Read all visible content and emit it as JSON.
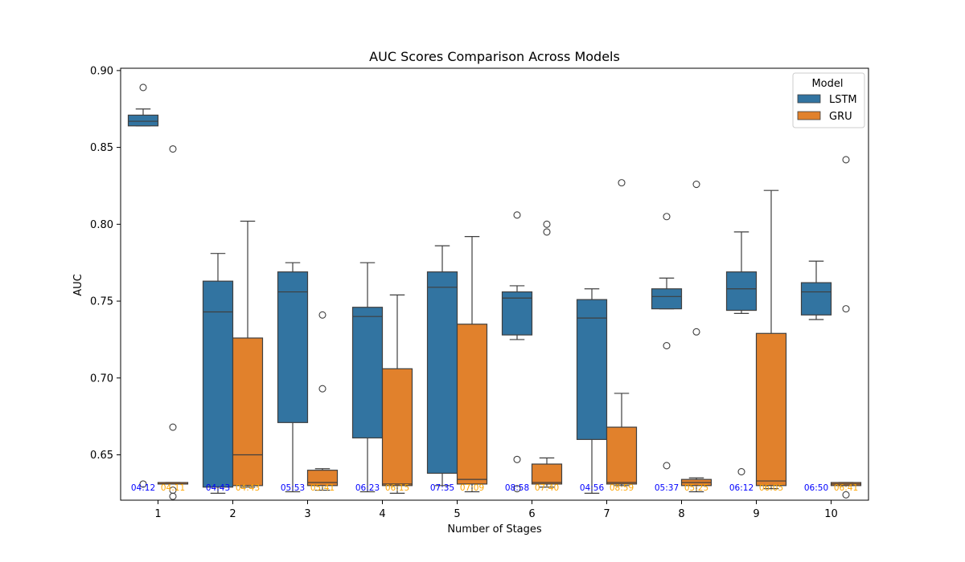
{
  "chart_data": {
    "type": "boxplot",
    "title": "AUC Scores Comparison Across Models",
    "xlabel": "Number of Stages",
    "ylabel": "AUC",
    "ylim": [
      0.6205,
      0.9015
    ],
    "yticks": [
      0.65,
      0.7,
      0.75,
      0.8,
      0.85,
      0.9
    ],
    "ytick_labels": [
      "0.65",
      "0.70",
      "0.75",
      "0.80",
      "0.85",
      "0.90"
    ],
    "categories": [
      "1",
      "2",
      "3",
      "4",
      "5",
      "6",
      "7",
      "8",
      "9",
      "10"
    ],
    "legend": {
      "title": "Model",
      "position": "top-right",
      "entries": [
        "LSTM",
        "GRU"
      ]
    },
    "series": [
      {
        "name": "LSTM",
        "color": "#3274a1",
        "time_color": "#0000ff",
        "boxes": [
          {
            "whisker_low": 0.864,
            "q1": 0.864,
            "median": 0.867,
            "q3": 0.871,
            "whisker_high": 0.875,
            "outliers": [
              0.889,
              0.631
            ]
          },
          {
            "whisker_low": 0.625,
            "q1": 0.629,
            "median": 0.743,
            "q3": 0.763,
            "whisker_high": 0.781,
            "outliers": []
          },
          {
            "whisker_low": 0.626,
            "q1": 0.671,
            "median": 0.756,
            "q3": 0.769,
            "whisker_high": 0.775,
            "outliers": []
          },
          {
            "whisker_low": 0.626,
            "q1": 0.661,
            "median": 0.74,
            "q3": 0.746,
            "whisker_high": 0.775,
            "outliers": []
          },
          {
            "whisker_low": 0.63,
            "q1": 0.638,
            "median": 0.759,
            "q3": 0.769,
            "whisker_high": 0.786,
            "outliers": []
          },
          {
            "whisker_low": 0.725,
            "q1": 0.728,
            "median": 0.752,
            "q3": 0.756,
            "whisker_high": 0.76,
            "outliers": [
              0.806,
              0.647,
              0.628
            ]
          },
          {
            "whisker_low": 0.625,
            "q1": 0.66,
            "median": 0.739,
            "q3": 0.751,
            "whisker_high": 0.758,
            "outliers": []
          },
          {
            "whisker_low": 0.745,
            "q1": 0.745,
            "median": 0.753,
            "q3": 0.758,
            "whisker_high": 0.765,
            "outliers": [
              0.805,
              0.721,
              0.643
            ]
          },
          {
            "whisker_low": 0.742,
            "q1": 0.744,
            "median": 0.758,
            "q3": 0.769,
            "whisker_high": 0.795,
            "outliers": [
              0.639
            ]
          },
          {
            "whisker_low": 0.738,
            "q1": 0.741,
            "median": 0.756,
            "q3": 0.762,
            "whisker_high": 0.776,
            "outliers": []
          }
        ],
        "times": [
          "04:12",
          "04:43",
          "05:53",
          "06:23",
          "07:35",
          "08:58",
          "04:56",
          "05:37",
          "06:12",
          "06:50"
        ]
      },
      {
        "name": "GRU",
        "color": "#e1812c",
        "time_color": "#ffa500",
        "boxes": [
          {
            "whisker_low": 0.631,
            "q1": 0.631,
            "median": 0.631,
            "q3": 0.632,
            "whisker_high": 0.632,
            "outliers": [
              0.849,
              0.668,
              0.627,
              0.623
            ]
          },
          {
            "whisker_low": 0.629,
            "q1": 0.63,
            "median": 0.65,
            "q3": 0.726,
            "whisker_high": 0.802,
            "outliers": []
          },
          {
            "whisker_low": 0.627,
            "q1": 0.63,
            "median": 0.632,
            "q3": 0.64,
            "whisker_high": 0.641,
            "outliers": [
              0.741,
              0.693
            ]
          },
          {
            "whisker_low": 0.625,
            "q1": 0.63,
            "median": 0.631,
            "q3": 0.706,
            "whisker_high": 0.754,
            "outliers": []
          },
          {
            "whisker_low": 0.626,
            "q1": 0.631,
            "median": 0.634,
            "q3": 0.735,
            "whisker_high": 0.792,
            "outliers": []
          },
          {
            "whisker_low": 0.629,
            "q1": 0.631,
            "median": 0.632,
            "q3": 0.644,
            "whisker_high": 0.648,
            "outliers": [
              0.8,
              0.795
            ]
          },
          {
            "whisker_low": 0.63,
            "q1": 0.631,
            "median": 0.632,
            "q3": 0.668,
            "whisker_high": 0.69,
            "outliers": [
              0.827
            ]
          },
          {
            "whisker_low": 0.626,
            "q1": 0.63,
            "median": 0.632,
            "q3": 0.634,
            "whisker_high": 0.635,
            "outliers": [
              0.826,
              0.73
            ]
          },
          {
            "whisker_low": 0.628,
            "q1": 0.63,
            "median": 0.633,
            "q3": 0.729,
            "whisker_high": 0.822,
            "outliers": []
          },
          {
            "whisker_low": 0.63,
            "q1": 0.63,
            "median": 0.631,
            "q3": 0.632,
            "whisker_high": 0.632,
            "outliers": [
              0.842,
              0.745,
              0.624
            ]
          }
        ],
        "times": [
          "04:11",
          "04:43",
          "05:41",
          "06:15",
          "07:09",
          "07:40",
          "08:59",
          "05:25",
          "06:05",
          "06:41"
        ]
      }
    ]
  }
}
